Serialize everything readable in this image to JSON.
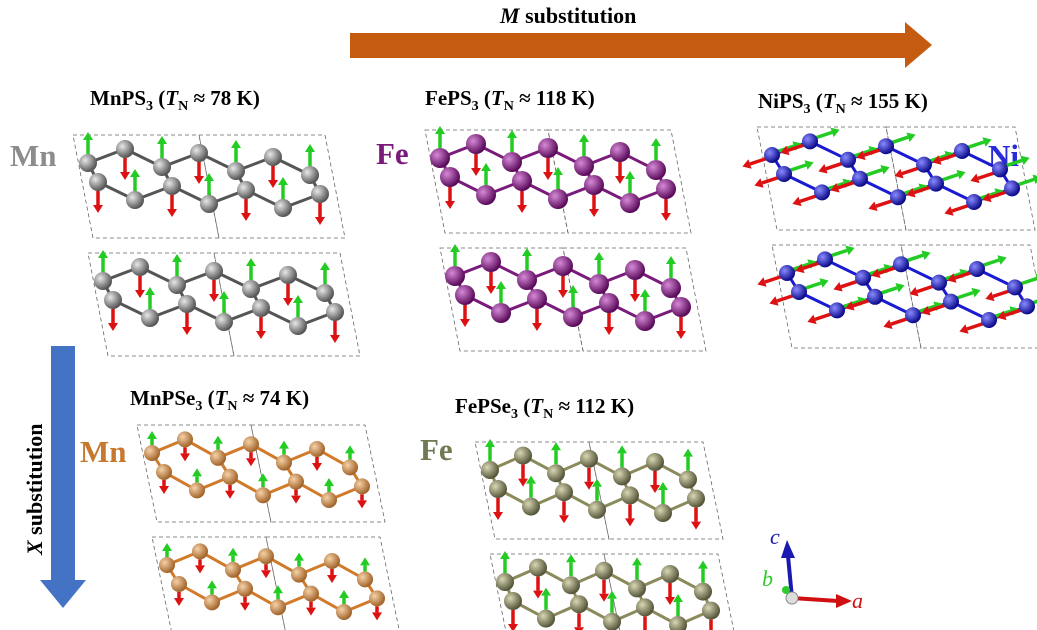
{
  "arrows": {
    "horizontal": [
      "M",
      " substitution"
    ],
    "vertical": [
      "X",
      " substitution"
    ]
  },
  "panels": [
    {
      "title": [
        "MnPS",
        "3",
        " (",
        "T",
        "N",
        " ≈ 78 K)"
      ],
      "element": "Mn"
    },
    {
      "title": [
        "FePS",
        "3",
        " (",
        "T",
        "N",
        " ≈ 118 K)"
      ],
      "element": "Fe"
    },
    {
      "title": [
        "NiPS",
        "3",
        " (",
        "T",
        "N",
        " ≈ 155 K)"
      ],
      "element": "Ni"
    },
    {
      "title": [
        "MnPSe",
        "3",
        " (",
        "T",
        "N",
        " ≈ 74 K)"
      ],
      "element": "Mn"
    },
    {
      "title": [
        "FePSe",
        "3",
        " (",
        "T",
        "N",
        " ≈ 112 K)"
      ],
      "element": "Fe"
    }
  ],
  "axes": {
    "a": "a",
    "b": "b",
    "c": "c"
  }
}
